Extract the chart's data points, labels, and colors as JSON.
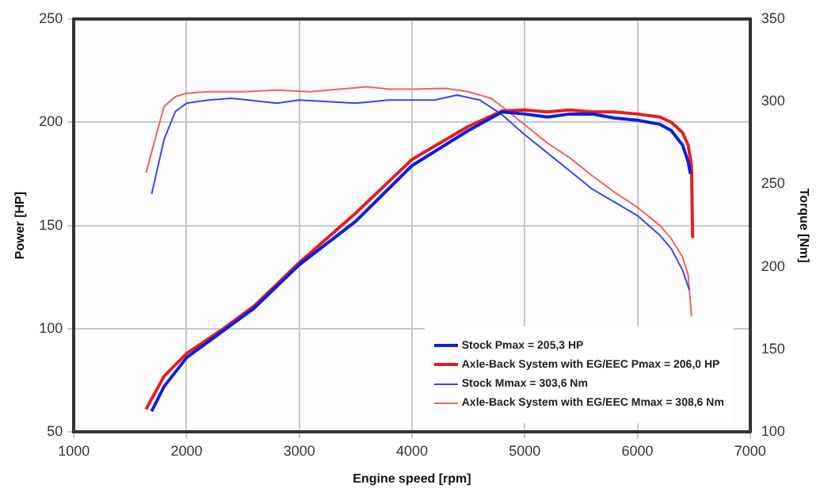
{
  "chart_data": {
    "type": "line",
    "xlabel": "Engine speed [rpm]",
    "ylabel": "Power [HP]",
    "y2label": "Torque [Nm]",
    "xlim": [
      1000,
      7000
    ],
    "xticks": [
      1000,
      2000,
      3000,
      4000,
      5000,
      6000,
      7000
    ],
    "ylim": [
      50,
      250
    ],
    "yticks": [
      50,
      100,
      150,
      200,
      250
    ],
    "y2lim": [
      100,
      350
    ],
    "y2ticks": [
      100,
      150,
      200,
      250,
      300,
      350
    ],
    "grid": true,
    "legend": "bottom right",
    "marker": "none",
    "line_style": "solid",
    "series": [
      {
        "name": "Stock Pmax = 205,3 HP",
        "color": "#0a1ee6",
        "x": [
          1690,
          1800,
          2000,
          2300,
          2600,
          3000,
          3500,
          4000,
          4500,
          4800,
          5000,
          5200,
          5400,
          5600,
          5800,
          6000,
          6200,
          6300,
          6400,
          6450,
          6470
        ],
        "values": [
          60,
          72,
          86,
          98,
          110,
          131,
          152,
          179,
          196,
          205,
          204,
          202.5,
          204,
          204,
          202,
          201,
          199,
          196,
          189,
          181,
          175
        ]
      },
      {
        "name": "Axle-Back System with EG/EEC Pmax = 206,0 HP",
        "color": "#e61e1e",
        "x": [
          1640,
          1800,
          2000,
          2300,
          2600,
          3000,
          3500,
          4000,
          4500,
          4800,
          5000,
          5200,
          5400,
          5600,
          5800,
          6000,
          6200,
          6300,
          6400,
          6450,
          6480,
          6490
        ],
        "values": [
          61,
          77,
          88,
          99,
          111,
          132,
          156,
          182,
          198,
          205.5,
          206,
          205,
          206,
          205,
          205,
          204,
          202.5,
          200,
          195,
          189,
          179,
          144
        ]
      },
      {
        "name": "Stock Mmax = 303,6 Nm",
        "color": "#3c46f0",
        "axis": "y2",
        "x": [
          1690,
          1800,
          1900,
          2000,
          2200,
          2400,
          2800,
          3000,
          3500,
          3800,
          4000,
          4200,
          4400,
          4600,
          4800,
          5000,
          5200,
          5400,
          5600,
          5800,
          6000,
          6200,
          6300,
          6400,
          6460
        ],
        "values": [
          244,
          277,
          294,
          299,
          301,
          302,
          299,
          301,
          299,
          301,
          301,
          301,
          304,
          301,
          292,
          280,
          269,
          258,
          247,
          239,
          231,
          219,
          211,
          198,
          186
        ]
      },
      {
        "name": "Axle-Back System with EG/EEC Mmax = 308,6 Nm",
        "color": "#f06464",
        "axis": "y2",
        "x": [
          1640,
          1800,
          1900,
          2000,
          2200,
          2500,
          2800,
          3100,
          3600,
          3800,
          4000,
          4300,
          4500,
          4700,
          4800,
          5000,
          5200,
          5400,
          5600,
          5800,
          6000,
          6200,
          6300,
          6400,
          6450,
          6480
        ],
        "values": [
          257,
          297,
          303,
          305,
          306,
          306,
          307,
          306,
          309,
          307.5,
          307.5,
          308,
          306,
          302,
          297,
          286,
          275,
          266,
          255,
          245,
          236,
          225,
          217,
          206,
          195,
          170
        ]
      }
    ]
  }
}
